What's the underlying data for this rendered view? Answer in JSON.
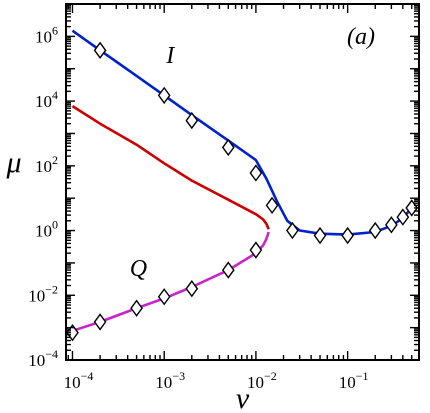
{
  "chart_data": {
    "type": "line",
    "title": "",
    "panel_label": "(a)",
    "xlabel": "ν",
    "ylabel": "μ",
    "xscale": "log",
    "yscale": "log",
    "xlim": [
      8.5e-05,
      0.6
    ],
    "ylim": [
      0.0001,
      10000000
    ],
    "grid": false,
    "x_ticks": [
      {
        "value": 0.0001,
        "base": "10",
        "exp": "−4"
      },
      {
        "value": 0.001,
        "base": "10",
        "exp": "−3"
      },
      {
        "value": 0.01,
        "base": "10",
        "exp": "−2"
      },
      {
        "value": 0.1,
        "base": "10",
        "exp": "−1"
      }
    ],
    "y_ticks": [
      {
        "value": 0.0001,
        "base": "10",
        "exp": "−4"
      },
      {
        "value": 0.01,
        "base": "10",
        "exp": "−2"
      },
      {
        "value": 1,
        "base": "10",
        "exp": "0"
      },
      {
        "value": 100,
        "base": "10",
        "exp": "2"
      },
      {
        "value": 10000,
        "base": "10",
        "exp": "4"
      },
      {
        "value": 1000000,
        "base": "10",
        "exp": "6"
      }
    ],
    "annotations": [
      {
        "text": "I",
        "x": 0.001,
        "y": 150000
      },
      {
        "text": "Q",
        "x": 0.00045,
        "y": 0.04
      }
    ],
    "series": [
      {
        "color": "#0022cc",
        "x": [
          0.0001,
          0.0002,
          0.0005,
          0.001,
          0.002,
          0.005,
          0.01,
          0.013,
          0.017,
          0.022,
          0.03,
          0.05,
          0.1,
          0.2,
          0.3,
          0.4,
          0.5
        ],
        "y": [
          1500000,
          370000,
          60000,
          15000,
          3700,
          600,
          150,
          40,
          8,
          2,
          1.0,
          0.8,
          0.75,
          0.9,
          1.4,
          2.4,
          5
        ]
      },
      {
        "color": "#cc0000",
        "x": [
          0.0001,
          0.0002,
          0.0005,
          0.001,
          0.002,
          0.005,
          0.01,
          0.012,
          0.013,
          0.0138
        ],
        "y": [
          7000,
          2000,
          450,
          120,
          35,
          9,
          3.2,
          2.2,
          1.6,
          1.1
        ]
      },
      {
        "color": "#cc22cc",
        "x": [
          0.0001,
          0.0002,
          0.0005,
          0.001,
          0.002,
          0.005,
          0.01,
          0.012,
          0.013,
          0.0138
        ],
        "y": [
          0.0008,
          0.0015,
          0.004,
          0.008,
          0.018,
          0.06,
          0.2,
          0.35,
          0.55,
          0.9
        ]
      }
    ],
    "markers": {
      "shape": "diamond",
      "x": [
        0.0002,
        0.001,
        0.002,
        0.005,
        0.01,
        0.015,
        0.025,
        0.05,
        0.1,
        0.2,
        0.3,
        0.4,
        0.5,
        0.0001,
        0.0002,
        0.0005,
        0.001,
        0.002,
        0.005,
        0.01
      ],
      "y": [
        370000,
        15000,
        2500,
        370,
        60,
        6,
        1.0,
        0.7,
        0.7,
        1.0,
        1.5,
        2.6,
        5,
        0.0007,
        0.0015,
        0.004,
        0.009,
        0.016,
        0.06,
        0.25
      ]
    }
  }
}
